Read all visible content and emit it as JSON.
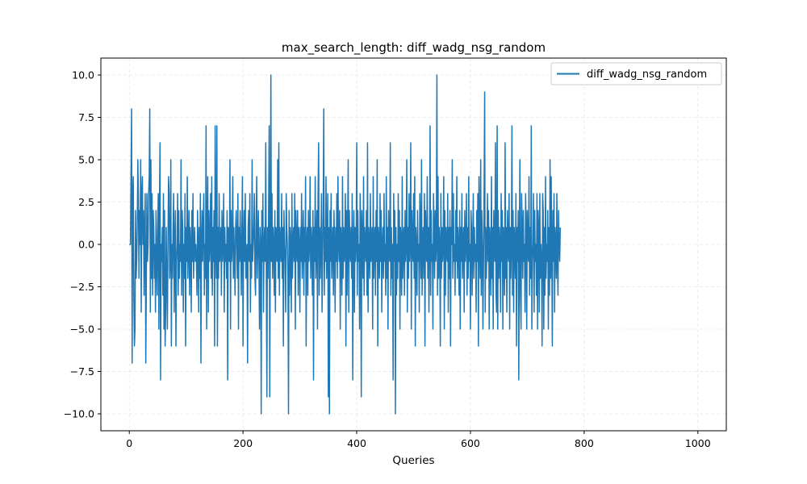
{
  "chart_data": {
    "type": "line",
    "title": "max_search_length: diff_wadg_nsg_random",
    "xlabel": "Queries",
    "ylabel": "",
    "xlim": [
      -50,
      1050
    ],
    "ylim": [
      -11,
      11
    ],
    "xticks": [
      0,
      200,
      400,
      600,
      800,
      1000
    ],
    "xtick_labels": [
      "0",
      "200",
      "400",
      "600",
      "800",
      "1000"
    ],
    "yticks": [
      -10,
      -7.5,
      -5,
      -2.5,
      0,
      2.5,
      5,
      7.5,
      10
    ],
    "ytick_labels": [
      "−10.0",
      "−7.5",
      "−5.0",
      "−2.5",
      "0.0",
      "2.5",
      "5.0",
      "7.5",
      "10.0"
    ],
    "grid": true,
    "legend_position": "top-right",
    "series": [
      {
        "name": "diff_wadg_nsg_random",
        "color": "#1f77b4",
        "x_start": 0,
        "x_step": 1,
        "values": [
          0,
          0,
          0,
          4,
          8,
          -7,
          3,
          4,
          -3,
          -6,
          -5,
          2,
          -2,
          -1,
          1,
          5,
          3,
          -2,
          2,
          0,
          5,
          -4,
          3,
          4,
          0,
          2,
          -3,
          1,
          3,
          -7,
          -2,
          3,
          -1,
          0,
          3,
          4,
          8,
          -4,
          5,
          -2,
          3,
          -3,
          2,
          1,
          -2,
          0,
          -4,
          2,
          -1,
          -3,
          1,
          3,
          -5,
          2,
          6,
          -8,
          0,
          -1,
          1,
          -3,
          3,
          -5,
          2,
          -6,
          -4,
          1,
          -2,
          -5,
          0,
          4,
          3,
          -2,
          -1,
          5,
          -6,
          0,
          -2,
          1,
          3,
          -4,
          0,
          2,
          -6,
          -1,
          0,
          3,
          -3,
          2,
          -2,
          0,
          -1,
          5,
          -3,
          2,
          1,
          -4,
          0,
          -2,
          3,
          -6,
          1,
          -1,
          4,
          -2,
          0,
          2,
          -3,
          1,
          0,
          -4,
          2,
          -1,
          3,
          -2,
          0,
          1,
          -1,
          0,
          -1,
          -3,
          2,
          0,
          -4,
          1,
          -2,
          3,
          -7,
          0,
          2,
          -1,
          1,
          3,
          -3,
          0,
          -2,
          7,
          -5,
          1,
          4,
          -4,
          2,
          -1,
          0,
          3,
          -2,
          4,
          -3,
          1,
          -1,
          2,
          -6,
          7,
          0,
          -2,
          7,
          -6,
          1,
          -2,
          3,
          -1,
          0,
          1,
          -3,
          2,
          -1,
          0,
          3,
          -4,
          1,
          -1,
          0,
          -2,
          2,
          -8,
          1,
          0,
          -1,
          5,
          -5,
          2,
          -1,
          0,
          4,
          -2,
          1,
          -1,
          -3,
          1,
          2,
          0,
          -2,
          3,
          -5,
          1,
          -1,
          2,
          0,
          -3,
          1,
          4,
          -6,
          0,
          2,
          -1,
          3,
          -2,
          -1,
          0,
          -7,
          1,
          2,
          -1,
          3,
          -4,
          0,
          -2,
          5,
          -1,
          0,
          1,
          3,
          -2,
          -3,
          1,
          4,
          -2,
          0,
          2,
          -1,
          -5,
          1,
          0,
          -10,
          2,
          -1,
          3,
          -4,
          0,
          1,
          -1,
          6,
          -2,
          -9,
          1,
          -2,
          2,
          7,
          -9,
          0,
          10,
          -1,
          3,
          -2,
          1,
          0,
          -3,
          2,
          -4,
          1,
          0,
          -1,
          5,
          -2,
          6,
          -3,
          1,
          0,
          -1,
          3,
          -2,
          1,
          -6,
          2,
          0,
          -1,
          -4,
          3,
          1,
          0,
          -2,
          -10,
          2,
          -3,
          1,
          0,
          -4,
          3,
          -2,
          0,
          1,
          -1,
          3,
          -5,
          2,
          0,
          -1,
          2,
          -3,
          1,
          0,
          -4,
          1,
          -1,
          3,
          -2,
          0,
          2,
          -3,
          1,
          -1,
          4,
          -6,
          0,
          1,
          -3,
          2,
          -1,
          0,
          4,
          -2,
          1,
          0,
          -3,
          2,
          -8,
          1,
          -1,
          4,
          -2,
          0,
          2,
          -5,
          3,
          6,
          -3,
          1,
          -2,
          0,
          3,
          -4,
          -1,
          2,
          8,
          -3,
          1,
          -1,
          4,
          -2,
          0,
          3,
          -9,
          1,
          -10,
          2,
          -1,
          3,
          -2,
          0,
          1,
          -3,
          2,
          0,
          -4,
          1,
          -1,
          3,
          -2,
          4,
          0,
          -1,
          2,
          -5,
          1,
          0,
          -3,
          4,
          -2,
          1,
          -1,
          0,
          3,
          -6,
          2,
          -3,
          1,
          5,
          -4,
          2,
          0,
          -1,
          1,
          -2,
          3,
          -8,
          0,
          2,
          -4,
          1,
          -1,
          0,
          6,
          -3,
          2,
          -1,
          0,
          -5,
          3,
          1,
          -9,
          2,
          0,
          -2,
          4,
          -3,
          1,
          0,
          -1,
          2,
          -3,
          6,
          -4,
          1,
          0,
          -2,
          3,
          -1,
          0,
          1,
          -5,
          4,
          -2,
          0,
          1,
          -3,
          2,
          -1,
          5,
          -6,
          1,
          0,
          -2,
          3,
          -1,
          2,
          -4,
          0,
          1,
          -2,
          3,
          -1,
          0,
          -3,
          4,
          -2,
          1,
          -5,
          2,
          0,
          -1,
          6,
          -3,
          1,
          -2,
          0,
          -8,
          3,
          -1,
          2,
          -10,
          1,
          -3,
          0,
          -2,
          3,
          -1,
          2,
          -5,
          1,
          0,
          -3,
          4,
          -2,
          0,
          1,
          -3,
          2,
          -1,
          0,
          5,
          -4,
          1,
          -2,
          3,
          -1,
          0,
          6,
          -5,
          2,
          0,
          -1,
          3,
          -2,
          4,
          -6,
          1,
          0,
          -3,
          2,
          -1,
          0,
          -4,
          3,
          1,
          -2,
          5,
          -3,
          0,
          1,
          -2,
          3,
          -6,
          2,
          0,
          -1,
          4,
          -2,
          1,
          -4,
          0,
          7,
          -3,
          2,
          -1,
          0,
          -5,
          3,
          1,
          -2,
          2,
          -1,
          0,
          10,
          -3,
          4,
          -2,
          1,
          0,
          -6,
          3,
          -2,
          1,
          -1,
          0,
          4,
          -5,
          2,
          -3,
          1,
          0,
          -1,
          3,
          -4,
          1,
          -2,
          2,
          -6,
          1,
          0,
          5,
          -2,
          3,
          -1,
          0,
          -3,
          2,
          -1,
          4,
          -2,
          1,
          0,
          -3,
          2,
          -5,
          1,
          -1,
          3,
          -2,
          0,
          1,
          -4,
          2,
          -1,
          0,
          3,
          -3,
          1,
          -2,
          4,
          -1,
          0,
          -5,
          2,
          1,
          -3,
          0,
          3,
          -2,
          1,
          -1,
          0,
          -4,
          2,
          -1,
          3,
          -6,
          4,
          1,
          -2,
          5,
          -3,
          2,
          0,
          -5,
          -1,
          3,
          9,
          -4,
          1,
          -2,
          0,
          3,
          -1,
          2,
          -5,
          1,
          0,
          -3,
          4,
          -2,
          1,
          -5,
          2,
          0,
          -1,
          6,
          -3,
          -4,
          7,
          -5,
          2,
          -2,
          1,
          0,
          -4,
          3,
          -1,
          2,
          -5,
          1,
          0,
          -3,
          6,
          -2,
          1,
          -4,
          2,
          0,
          -1,
          3,
          -5,
          1,
          -2,
          0,
          7,
          -3,
          2,
          -4,
          1,
          0,
          -2,
          3,
          -6,
          1,
          -1,
          2,
          -8,
          0,
          5,
          -3,
          -5,
          3,
          1,
          -2,
          2,
          -1,
          0,
          -4,
          3,
          1,
          -5,
          2,
          0,
          -1,
          4,
          -3,
          1,
          -2,
          7,
          -5,
          -1,
          0,
          3,
          -4,
          2,
          -1,
          0,
          -3,
          3,
          -5,
          2,
          1,
          -4,
          3,
          -2,
          0,
          -1,
          -6,
          3,
          2,
          -5,
          1,
          -3,
          4,
          -2,
          0,
          -1,
          2,
          -5,
          1,
          -3,
          5,
          -2,
          4,
          0,
          -6,
          2,
          -1,
          3,
          -4,
          1,
          0,
          -2,
          3,
          -1,
          -3,
          2,
          0,
          -1,
          1
        ]
      }
    ]
  }
}
